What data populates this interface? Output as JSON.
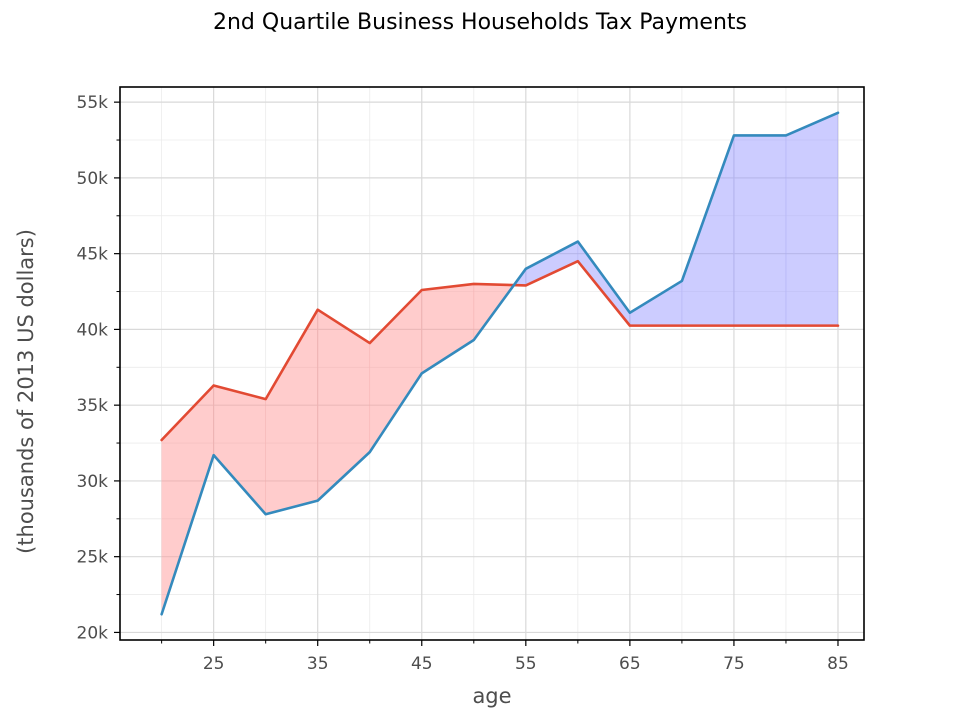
{
  "chart_data": {
    "type": "line",
    "title": "2nd Quartile Business Households Tax Payments",
    "xlabel": "age",
    "ylabel": "(thousands of 2013 US dollars)",
    "x": [
      20,
      25,
      30,
      35,
      40,
      45,
      50,
      55,
      60,
      65,
      70,
      75,
      80,
      85
    ],
    "xlim": [
      16,
      87.5
    ],
    "ylim": [
      19500,
      56000
    ],
    "x_ticks": [
      25,
      35,
      45,
      55,
      65,
      75,
      85
    ],
    "x_tick_labels": [
      "25",
      "35",
      "45",
      "55",
      "65",
      "75",
      "85"
    ],
    "y_ticks": [
      20000,
      25000,
      30000,
      35000,
      40000,
      45000,
      50000,
      55000
    ],
    "y_tick_labels": [
      "20k",
      "25k",
      "30k",
      "35k",
      "40k",
      "45k",
      "50k",
      "55k"
    ],
    "grid": true,
    "series": [
      {
        "color": "#e24a33",
        "values": [
          32700,
          36300,
          35400,
          41300,
          39100,
          42600,
          43000,
          42900,
          44500,
          40250,
          40250,
          40250,
          40250,
          40250
        ]
      },
      {
        "color": "#348abd",
        "values": [
          21200,
          31700,
          27800,
          28700,
          31900,
          37100,
          39300,
          44000,
          45800,
          41100,
          43200,
          52800,
          52800,
          54300
        ]
      }
    ],
    "fill_between": {
      "above_color": "#ff9999",
      "below_color": "#9999ff",
      "opacity": 0.5
    }
  }
}
